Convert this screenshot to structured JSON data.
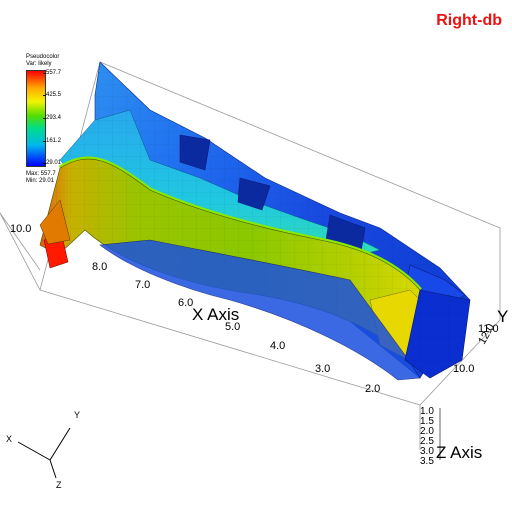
{
  "db_label": "Right-db",
  "legend": {
    "title": "Pseudocolor",
    "var_label": "Var: likely",
    "ticks": [
      "557.7",
      "425.5",
      "293.4",
      "161.2",
      "29.01"
    ],
    "max_label": "Max: 557.7",
    "min_label": "Min: 29.01"
  },
  "axes": {
    "x_title": "X Axis",
    "y_title": "Y",
    "z_title": "Z Axis",
    "x_ticks": [
      "10.0",
      "8.0",
      "7.0",
      "6.0",
      "5.0",
      "4.0",
      "3.0",
      "2.0"
    ],
    "y_ticks": [
      "12.0",
      "11.0",
      "10.0"
    ],
    "z_ticks": [
      "1.0",
      "1.5",
      "2.0",
      "2.5",
      "3.0",
      "3.5"
    ]
  },
  "triad": {
    "x": "X",
    "y": "Y",
    "z": "Z"
  },
  "colors": {
    "db_label": "#ee1111",
    "low": "#0000ff",
    "mid": "#55dd00",
    "high": "#ff0000"
  }
}
